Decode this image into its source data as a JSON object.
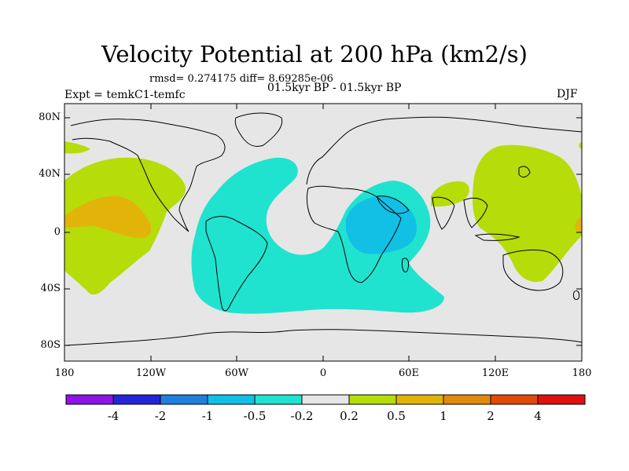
{
  "title": "Velocity Potential at 200 hPa (km2/s)",
  "stats": "rmsd= 0.274175 diff= 8.69285e-06",
  "experiment": "Expt = temkC1-temfc",
  "period": "01.5kyr BP - 01.5kyr BP",
  "season": "DJF",
  "map": {
    "projection": "cylindrical equidistant",
    "lon_range": [
      -180,
      180
    ],
    "lat_range": [
      -90,
      90
    ],
    "lat_ticks": [
      "80N",
      "40N",
      "0",
      "40S",
      "80S"
    ],
    "lon_ticks": [
      "180",
      "120W",
      "60W",
      "0",
      "60E",
      "120E",
      "180"
    ]
  },
  "colorbar": {
    "labels": [
      "-4",
      "-2",
      "-1",
      "-0.5",
      "-0.2",
      "0.2",
      "0.5",
      "1",
      "2",
      "4"
    ],
    "colors": [
      "#8c14e6",
      "#2424d8",
      "#1f7fdc",
      "#12c0e6",
      "#1fe3cf",
      "#e6e6e6",
      "#b6dc0a",
      "#e2b40a",
      "#e28a0a",
      "#e24a0a",
      "#e01010"
    ]
  },
  "fields": {
    "background_color": "#e6e6e6",
    "continent_color": "#000000"
  }
}
